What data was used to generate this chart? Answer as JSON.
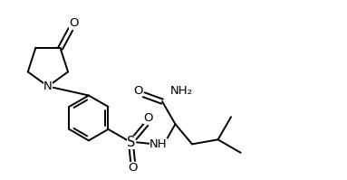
{
  "bg_color": "#ffffff",
  "line_color": "#000000",
  "line_width": 1.4,
  "font_size": 8.5,
  "figsize": [
    3.83,
    1.99
  ],
  "dpi": 100,
  "xlim": [
    0,
    9.5
  ],
  "ylim": [
    0,
    4.9
  ]
}
